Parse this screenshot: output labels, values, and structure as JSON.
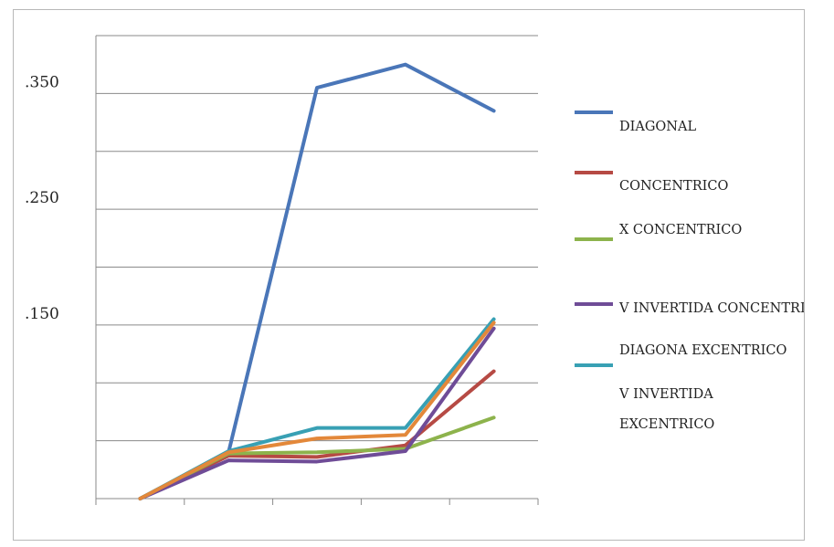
{
  "chart_data": {
    "type": "line",
    "title": "",
    "xlabel": "",
    "ylabel": "",
    "ylim": [
      0,
      0.4
    ],
    "y_tick_labels": [
      {
        "value": 0.35,
        "label": ".350"
      },
      {
        "value": 0.25,
        "label": ".250"
      },
      {
        "value": 0.15,
        "label": ".150"
      }
    ],
    "y_gridlines": [
      0.05,
      0.1,
      0.15,
      0.2,
      0.25,
      0.3,
      0.35,
      0.4
    ],
    "x_count": 5,
    "grid": true,
    "legend_position": "right",
    "series": [
      {
        "name": "DIAGONAL",
        "color": "#4a76b8",
        "values": [
          0,
          0.04,
          0.355,
          0.375,
          0.335
        ]
      },
      {
        "name": "CONCENTRICO",
        "color": "#b64a44",
        "values": [
          0,
          0.037,
          0.036,
          0.046,
          0.11
        ]
      },
      {
        "name": "X CONCENTRICO",
        "color": "#8db34c",
        "values": [
          0,
          0.039,
          0.04,
          0.043,
          0.07
        ]
      },
      {
        "name": "V INVERTIDA CONCENTRICO",
        "color": "#6f4c97",
        "values": [
          0,
          0.033,
          0.032,
          0.041,
          0.147
        ]
      },
      {
        "name": "DIAGONA EXCENTRICO",
        "color": "#38a0b4",
        "values": [
          0,
          0.041,
          0.061,
          0.061,
          0.155
        ]
      },
      {
        "name": "V INVERTIDA",
        "color": "",
        "values": []
      },
      {
        "name": "EXCENTRICO",
        "color": "#e3883a",
        "values": [
          0,
          0.04,
          0.052,
          0.055,
          0.152
        ]
      }
    ]
  }
}
